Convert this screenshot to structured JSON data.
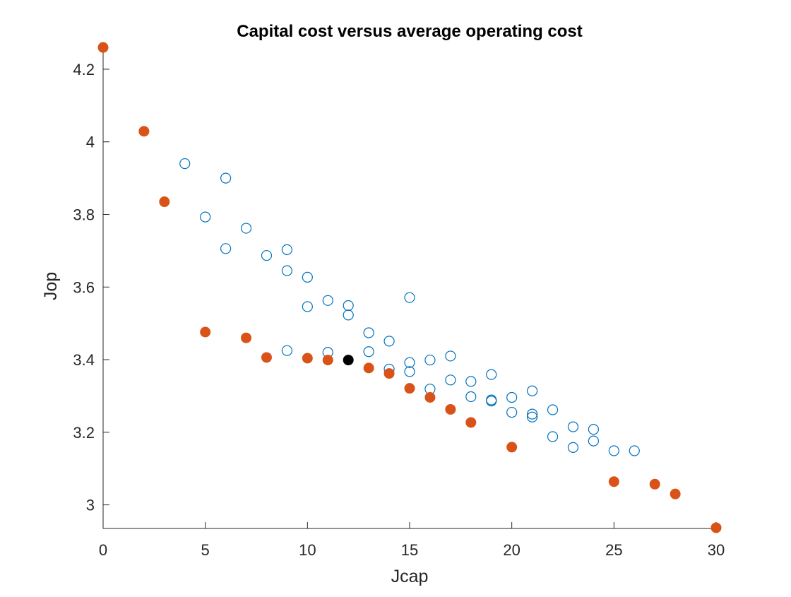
{
  "chart_data": {
    "type": "scatter",
    "title": "Capital cost versus average operating cost",
    "xlabel": "Jcap",
    "ylabel": "Jop",
    "xlim": [
      0,
      30
    ],
    "ylim": [
      2.935,
      4.27
    ],
    "xticks": [
      0,
      5,
      10,
      15,
      20,
      25,
      30
    ],
    "xtick_labels": [
      "0",
      "5",
      "10",
      "15",
      "20",
      "25",
      "30"
    ],
    "yticks": [
      3,
      3.2,
      3.4,
      3.6,
      3.8,
      4,
      4.2
    ],
    "ytick_labels": [
      "3",
      "3.2",
      "3.4",
      "3.6",
      "3.8",
      "4",
      "4.2"
    ],
    "grid": false,
    "series": [
      {
        "marker": "open-circle",
        "color": "#0072BD",
        "points": [
          [
            4,
            3.94
          ],
          [
            6,
            3.9
          ],
          [
            5,
            3.793
          ],
          [
            7,
            3.762
          ],
          [
            6,
            3.706
          ],
          [
            8,
            3.687
          ],
          [
            9,
            3.703
          ],
          [
            9,
            3.645
          ],
          [
            10,
            3.627
          ],
          [
            10,
            3.546
          ],
          [
            11,
            3.563
          ],
          [
            12,
            3.549
          ],
          [
            12,
            3.523
          ],
          [
            15,
            3.571
          ],
          [
            13,
            3.474
          ],
          [
            14,
            3.451
          ],
          [
            9,
            3.425
          ],
          [
            11,
            3.42
          ],
          [
            13,
            3.422
          ],
          [
            14,
            3.374
          ],
          [
            15,
            3.392
          ],
          [
            15,
            3.367
          ],
          [
            16,
            3.399
          ],
          [
            17,
            3.41
          ],
          [
            16,
            3.319
          ],
          [
            17,
            3.344
          ],
          [
            18,
            3.34
          ],
          [
            19,
            3.359
          ],
          [
            18,
            3.298
          ],
          [
            19,
            3.289
          ],
          [
            19,
            3.286
          ],
          [
            20,
            3.296
          ],
          [
            21,
            3.314
          ],
          [
            20,
            3.255
          ],
          [
            21,
            3.25
          ],
          [
            21,
            3.242
          ],
          [
            22,
            3.262
          ],
          [
            22,
            3.188
          ],
          [
            23,
            3.215
          ],
          [
            23,
            3.158
          ],
          [
            24,
            3.208
          ],
          [
            24,
            3.176
          ],
          [
            25,
            3.149
          ],
          [
            26,
            3.149
          ]
        ]
      },
      {
        "marker": "filled-circle",
        "color": "#D95319",
        "points": [
          [
            0,
            4.26
          ],
          [
            2,
            4.029
          ],
          [
            3,
            3.835
          ],
          [
            5,
            3.476
          ],
          [
            7,
            3.46
          ],
          [
            8,
            3.406
          ],
          [
            10,
            3.404
          ],
          [
            11,
            3.399
          ],
          [
            13,
            3.377
          ],
          [
            14,
            3.362
          ],
          [
            15,
            3.321
          ],
          [
            16,
            3.296
          ],
          [
            17,
            3.263
          ],
          [
            18,
            3.227
          ],
          [
            20,
            3.159
          ],
          [
            25,
            3.064
          ],
          [
            27,
            3.057
          ],
          [
            28,
            3.03
          ],
          [
            30,
            2.937
          ]
        ]
      },
      {
        "marker": "filled-circle",
        "color": "#000000",
        "points": [
          [
            12,
            3.399
          ]
        ]
      }
    ]
  }
}
